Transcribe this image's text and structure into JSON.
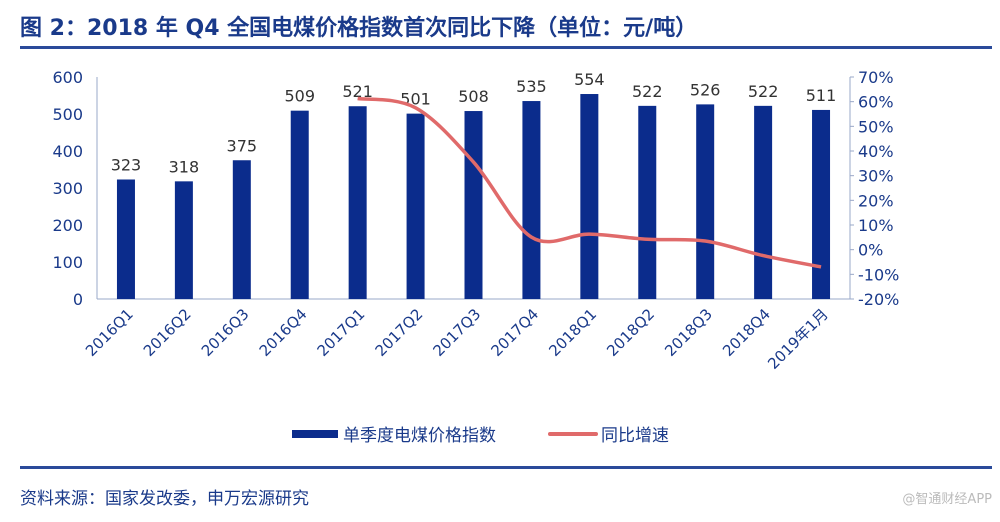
{
  "title": "图 2：2018 年 Q4 全国电煤价格指数首次同比下降（单位：元/吨）",
  "source": "资料来源：国家发改委，申万宏源研究",
  "watermark": "@智通财经APP",
  "chart_data": {
    "type": "bar+line",
    "categories": [
      "2016Q1",
      "2016Q2",
      "2016Q3",
      "2016Q4",
      "2017Q1",
      "2017Q2",
      "2017Q3",
      "2017Q4",
      "2018Q1",
      "2018Q2",
      "2018Q3",
      "2018Q4",
      "2019年1月"
    ],
    "series": [
      {
        "name": "单季度电煤价格指数",
        "type": "bar",
        "axis": "left",
        "color": "#0b2c8c",
        "values": [
          323,
          318,
          375,
          509,
          521,
          501,
          508,
          535,
          554,
          522,
          526,
          522,
          511
        ]
      },
      {
        "name": "同比增速",
        "type": "line",
        "axis": "right",
        "color": "#e06a6a",
        "values": [
          null,
          null,
          null,
          null,
          61.3,
          57.5,
          35.5,
          5.1,
          6.3,
          4.2,
          3.5,
          -2.4,
          -7.0
        ]
      }
    ],
    "left_axis": {
      "min": 0,
      "max": 600,
      "ticks": [
        "0",
        "100",
        "200",
        "300",
        "400",
        "500",
        "600"
      ]
    },
    "right_axis": {
      "min": -20,
      "max": 70,
      "ticks": [
        "-20%",
        "-10%",
        "0%",
        "10%",
        "20%",
        "30%",
        "40%",
        "50%",
        "60%",
        "70%"
      ]
    },
    "data_labels": true,
    "legend": "bottom",
    "grid": false
  }
}
